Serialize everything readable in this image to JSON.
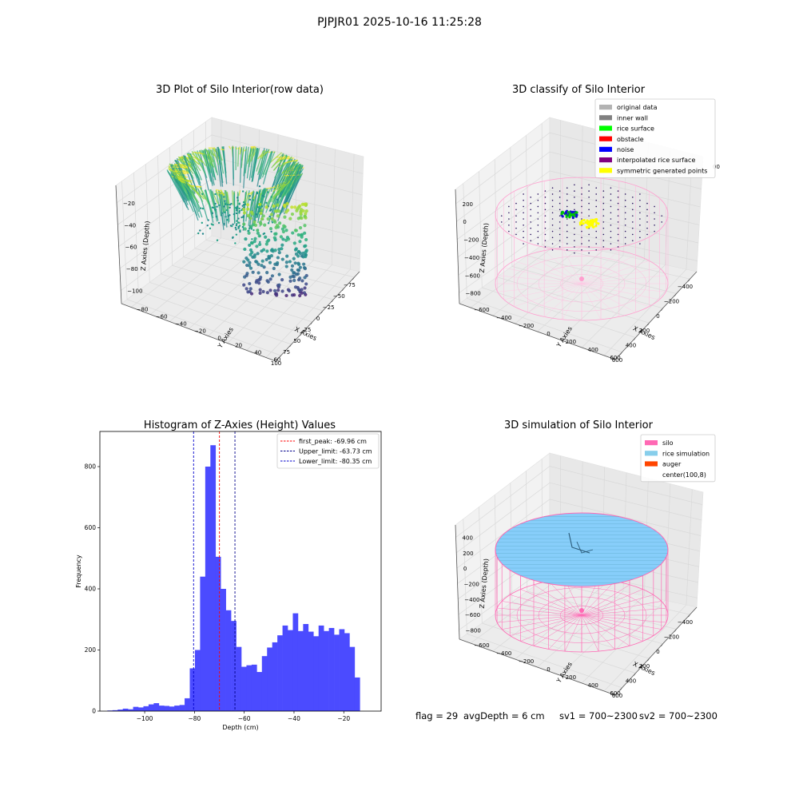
{
  "figure": {
    "suptitle": "PJPJR01 2025-10-16 11:25:28",
    "footer": {
      "flag": "flag = 29",
      "avg_depth": "avgDepth = 6 cm",
      "sv1": "sv1 = 700~2300",
      "sv2": "sv2 = 700~2300"
    }
  },
  "colors": {
    "histogram_bar": "#4b4bff",
    "first_peak": "#ff0000",
    "limit_line": "#00008b",
    "pane": "#f2f2f2",
    "pane_side": "#e8e8e8",
    "grid": "#d9d9d9",
    "silo_pink": "#ff69b4",
    "rice_blue": "#87cefa",
    "auger": "#ff4500"
  },
  "charts": [
    {
      "id": "raw3d",
      "title": "3D Plot of Silo Interior(row data)",
      "type": "scatter3d",
      "xlabel": "X Axies",
      "ylabel": "Y Axies",
      "zlabel": "Z Axies (Depth)",
      "xticks": [
        "−75",
        "−50",
        "−25",
        "0",
        "25",
        "50",
        "75",
        "100"
      ],
      "yticks": [
        "60",
        "40",
        "20",
        "0",
        "−20",
        "−40",
        "−60",
        "−80"
      ],
      "zticks": [
        "−20",
        "−40",
        "−60",
        "−80",
        "−100"
      ],
      "xlim": [
        -90,
        105
      ],
      "ylim": [
        -90,
        70
      ],
      "zlim": [
        -115,
        -10
      ],
      "colormap": "viridis"
    },
    {
      "id": "classify3d",
      "title": "3D classify of Silo Interior",
      "type": "scatter3d",
      "xlabel": "X Axies",
      "ylabel": "Y Axies",
      "zlabel": "Z Axies (Depth)",
      "xticks": [
        "−400",
        "−200",
        "0",
        "200",
        "400",
        "600"
      ],
      "yticks": [
        "600",
        "400",
        "200",
        "0",
        "−200",
        "−400",
        "−600"
      ],
      "zticks": [
        "200",
        "0",
        "−200",
        "−400",
        "−600",
        "−800"
      ],
      "zticks_extra": "00",
      "legend": [
        {
          "label": "original data",
          "color": "#b3b3b3"
        },
        {
          "label": "inner wall",
          "color": "#808080"
        },
        {
          "label": "rice surface",
          "color": "#00ff00"
        },
        {
          "label": "obstacle",
          "color": "#ff0000"
        },
        {
          "label": "noise",
          "color": "#0000ff"
        },
        {
          "label": "interpolated rice surface",
          "color": "#800080"
        },
        {
          "label": "symmetric generated points",
          "color": "#ffff00"
        }
      ],
      "legend_loc": "upper right"
    },
    {
      "id": "histogram",
      "title": "Histogram of Z-Axies (Height) Values",
      "type": "bar",
      "xlabel": "Depth (cm)",
      "ylabel": "Frequency",
      "xlim": [
        -118,
        -5
      ],
      "ylim": [
        0,
        915
      ],
      "xticks": [
        -100,
        -80,
        -60,
        -40,
        -20
      ],
      "xtick_labels": [
        "−100",
        "−80",
        "−60",
        "−40",
        "−20"
      ],
      "yticks": [
        0,
        200,
        400,
        600,
        800
      ],
      "yticks_labels": [
        "0",
        "200",
        "400",
        "600",
        "800"
      ],
      "bin_width": 2.07,
      "bin_start": -115,
      "values": [
        2,
        3,
        5,
        8,
        6,
        14,
        12,
        16,
        22,
        26,
        18,
        17,
        15,
        18,
        20,
        42,
        140,
        200,
        440,
        800,
        870,
        505,
        400,
        330,
        295,
        210,
        145,
        150,
        152,
        128,
        180,
        208,
        225,
        248,
        280,
        265,
        320,
        262,
        285,
        260,
        245,
        280,
        262,
        272,
        250,
        268,
        255,
        210,
        110
      ],
      "lines": [
        {
          "value": -69.96,
          "label": "first_peak: -69.96 cm",
          "color": "#ff0000"
        },
        {
          "value": -63.73,
          "label": "Upper_limit: -63.73 cm",
          "color": "#00008b"
        },
        {
          "value": -80.35,
          "label": "Lower_limit: -80.35 cm",
          "color": "#0000cd"
        }
      ],
      "legend_loc": "upper right"
    },
    {
      "id": "sim3d",
      "title": "3D simulation of Silo Interior",
      "type": "surface3d",
      "xlabel": "X Axies",
      "ylabel": "Y Axies",
      "zlabel": "Z Axies (Depth)",
      "xticks": [
        "−400",
        "−200",
        "0",
        "200",
        "400",
        "600"
      ],
      "yticks": [
        "600",
        "400",
        "200",
        "0",
        "−200",
        "−400",
        "−600"
      ],
      "zticks": [
        "400",
        "200",
        "0",
        "−200",
        "−400",
        "−600",
        "−800"
      ],
      "legend": [
        {
          "label": "silo",
          "color": "#ff69b4"
        },
        {
          "label": "rice simulation",
          "color": "#87ceeb"
        },
        {
          "label": "auger",
          "color": "#ff4500"
        },
        {
          "label": "center(100,8)",
          "color": ""
        }
      ],
      "legend_loc": "upper right"
    }
  ]
}
